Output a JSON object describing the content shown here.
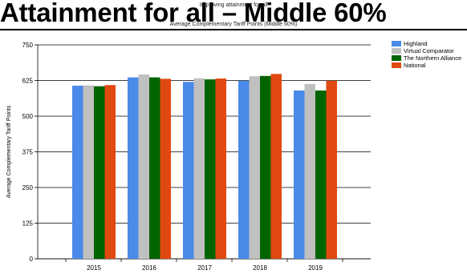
{
  "slide": {
    "title": "Attainment for all – Middle 60%"
  },
  "chart_data": {
    "type": "bar",
    "title": "Improving attainment for all",
    "subtitle": "Average Complementary Tariff Points (Middle 60%)",
    "xlabel": "",
    "ylabel": "Average Complementary Tariff Points",
    "ylim": [
      0,
      750
    ],
    "yticks": [
      0,
      125,
      250,
      375,
      500,
      625,
      750
    ],
    "grid": true,
    "legend_position": "right",
    "categories": [
      "2015",
      "2016",
      "2017",
      "2018",
      "2019"
    ],
    "series": [
      {
        "name": "Highland",
        "color": "#4a8ae8",
        "values": [
          607,
          636,
          620,
          624,
          590
        ]
      },
      {
        "name": "Virtual Comparator",
        "color": "#c0c0c0",
        "values": [
          608,
          646,
          633,
          640,
          613
        ]
      },
      {
        "name": "The Northern Alliance",
        "color": "#006400",
        "values": [
          605,
          636,
          629,
          641,
          590
        ]
      },
      {
        "name": "National",
        "color": "#e04a10",
        "values": [
          609,
          631,
          632,
          648,
          624
        ]
      }
    ]
  }
}
